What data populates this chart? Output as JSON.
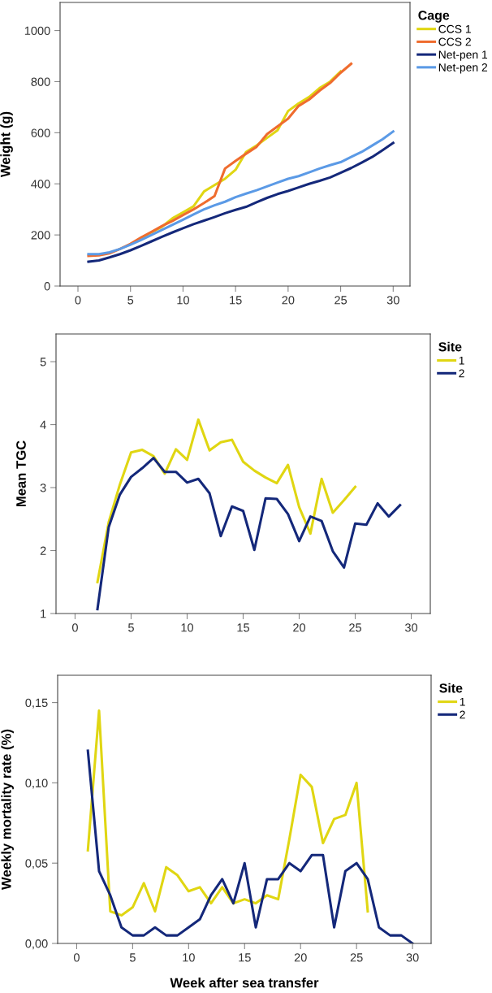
{
  "chart_data": [
    {
      "type": "line",
      "ylabel": "Weight (g)",
      "legend_title": "Cage",
      "legend": "right",
      "grid": false,
      "xlim": [
        -1.7,
        31.6
      ],
      "xticks": [
        0,
        5,
        10,
        15,
        20,
        25,
        30
      ],
      "ylim": [
        0,
        1110
      ],
      "yticks": [
        0,
        200,
        400,
        600,
        800,
        1000
      ],
      "tick_labels": "xy",
      "series": [
        {
          "name": "CCS 1",
          "color": "#e0d612",
          "x": [
            6,
            7,
            8,
            9,
            10,
            11,
            12,
            13,
            14,
            15,
            16,
            17,
            18,
            19,
            20,
            21,
            22,
            23,
            24,
            25
          ],
          "values": [
            188,
            210,
            232,
            265,
            288,
            312,
            370,
            395,
            420,
            455,
            525,
            550,
            580,
            610,
            685,
            715,
            740,
            775,
            800,
            840
          ]
        },
        {
          "name": "CCS 2",
          "color": "#ef6c2e",
          "x": [
            1,
            2,
            3,
            4,
            5,
            6,
            7,
            8,
            9,
            10,
            11,
            12,
            13,
            14,
            15,
            16,
            17,
            18,
            19,
            20,
            21,
            22,
            23,
            24,
            25,
            26
          ],
          "values": [
            118,
            120,
            128,
            145,
            165,
            190,
            212,
            235,
            255,
            278,
            300,
            325,
            352,
            460,
            490,
            518,
            545,
            595,
            625,
            655,
            705,
            730,
            765,
            795,
            835,
            870
          ]
        },
        {
          "name": "Net-pen 1",
          "color": "#14287a",
          "x": [
            1,
            2,
            3,
            4,
            5,
            6,
            7,
            8,
            9,
            10,
            11,
            12,
            13,
            14,
            15,
            16,
            17,
            18,
            19,
            20,
            21,
            22,
            23,
            24,
            25,
            26,
            27,
            28,
            29,
            30
          ],
          "values": [
            95,
            100,
            112,
            125,
            140,
            157,
            175,
            193,
            210,
            226,
            242,
            256,
            270,
            285,
            298,
            310,
            328,
            345,
            360,
            372,
            386,
            400,
            412,
            425,
            443,
            462,
            483,
            505,
            532,
            560
          ]
        },
        {
          "name": "Net-pen 2",
          "color": "#5b9ae6",
          "x": [
            1,
            2,
            3,
            4,
            5,
            6,
            7,
            8,
            9,
            10,
            11,
            12,
            13,
            14,
            15,
            16,
            17,
            18,
            19,
            20,
            21,
            22,
            23,
            24,
            25,
            26,
            27,
            28,
            29,
            30
          ],
          "values": [
            125,
            125,
            132,
            145,
            162,
            180,
            200,
            220,
            240,
            260,
            280,
            300,
            316,
            330,
            348,
            362,
            375,
            390,
            405,
            420,
            430,
            445,
            460,
            473,
            485,
            505,
            525,
            550,
            575,
            605
          ]
        }
      ]
    },
    {
      "type": "line",
      "ylabel": "Mean TGC",
      "legend_title": "Site",
      "legend": "right",
      "grid": false,
      "xlim": [
        -1.7,
        31.7
      ],
      "xticks": [
        0,
        5,
        10,
        15,
        20,
        25,
        30
      ],
      "ylim": [
        1,
        5.44
      ],
      "yticks": [
        1,
        2,
        3,
        4,
        5
      ],
      "series": [
        {
          "name": "1",
          "color": "#e0d612",
          "x": [
            2,
            3,
            4,
            5,
            6,
            7,
            8,
            9,
            10,
            11,
            12,
            13,
            14,
            15,
            16,
            17,
            18,
            19,
            20,
            21,
            22,
            23,
            24,
            25
          ],
          "values": [
            1.5,
            2.45,
            3.05,
            3.56,
            3.6,
            3.5,
            3.22,
            3.61,
            3.44,
            4.08,
            3.59,
            3.72,
            3.76,
            3.41,
            3.27,
            3.16,
            3.07,
            3.36,
            2.69,
            2.27,
            3.14,
            2.6,
            2.8,
            3.01
          ]
        },
        {
          "name": "2",
          "color": "#14287a",
          "x": [
            2,
            3,
            4,
            5,
            6,
            7,
            8,
            9,
            10,
            11,
            12,
            13,
            14,
            15,
            16,
            17,
            18,
            19,
            20,
            21,
            22,
            23,
            24,
            25,
            26,
            27,
            28,
            29
          ],
          "values": [
            1.07,
            2.37,
            2.89,
            3.17,
            3.31,
            3.47,
            3.25,
            3.25,
            3.08,
            3.14,
            2.91,
            2.23,
            2.7,
            2.63,
            2.01,
            2.83,
            2.82,
            2.58,
            2.15,
            2.54,
            2.47,
            1.99,
            1.73,
            2.43,
            2.41,
            2.75,
            2.54,
            2.72
          ]
        }
      ]
    },
    {
      "type": "line",
      "ylabel": "Weekly mortality rate (%)",
      "xlabel": "Week after sea transfer",
      "legend_title": "Site",
      "legend": "right",
      "grid": false,
      "xlim": [
        -1.7,
        31.66
      ],
      "xticks": [
        0,
        5,
        10,
        15,
        20,
        25,
        30
      ],
      "ylim": [
        0,
        0.167
      ],
      "yticks": [
        {
          "value": 0,
          "label": "0,00"
        },
        {
          "value": 0.05,
          "label": "0,05"
        },
        {
          "value": 0.1,
          "label": "0,10"
        },
        {
          "value": 0.15,
          "label": "0,15"
        }
      ],
      "series": [
        {
          "name": "1",
          "color": "#e0d612",
          "x": [
            1,
            2,
            3,
            4,
            5,
            6,
            7,
            8,
            9,
            10,
            11,
            12,
            13,
            14,
            15,
            16,
            17,
            18,
            19,
            20,
            21,
            22,
            23,
            24,
            25,
            26
          ],
          "values": [
            0.058,
            0.145,
            0.02,
            0.0175,
            0.0225,
            0.0375,
            0.02,
            0.0475,
            0.0425,
            0.0325,
            0.035,
            0.025,
            0.035,
            0.025,
            0.0275,
            0.025,
            0.03,
            0.0275,
            0.065,
            0.105,
            0.0975,
            0.0625,
            0.0775,
            0.08,
            0.1,
            0.02
          ]
        },
        {
          "name": "2",
          "color": "#14287a",
          "x": [
            1,
            2,
            3,
            4,
            5,
            6,
            7,
            8,
            9,
            10,
            11,
            12,
            13,
            14,
            15,
            16,
            17,
            18,
            19,
            20,
            21,
            22,
            23,
            24,
            25,
            26,
            27,
            28,
            29,
            30
          ],
          "values": [
            0.12,
            0.045,
            0.03,
            0.01,
            0.005,
            0.005,
            0.01,
            0.005,
            0.005,
            0.01,
            0.015,
            0.03,
            0.04,
            0.025,
            0.05,
            0.01,
            0.04,
            0.04,
            0.05,
            0.045,
            0.055,
            0.055,
            0.01,
            0.045,
            0.05,
            0.04,
            0.01,
            0.005,
            0.005,
            0.0
          ]
        }
      ]
    }
  ]
}
